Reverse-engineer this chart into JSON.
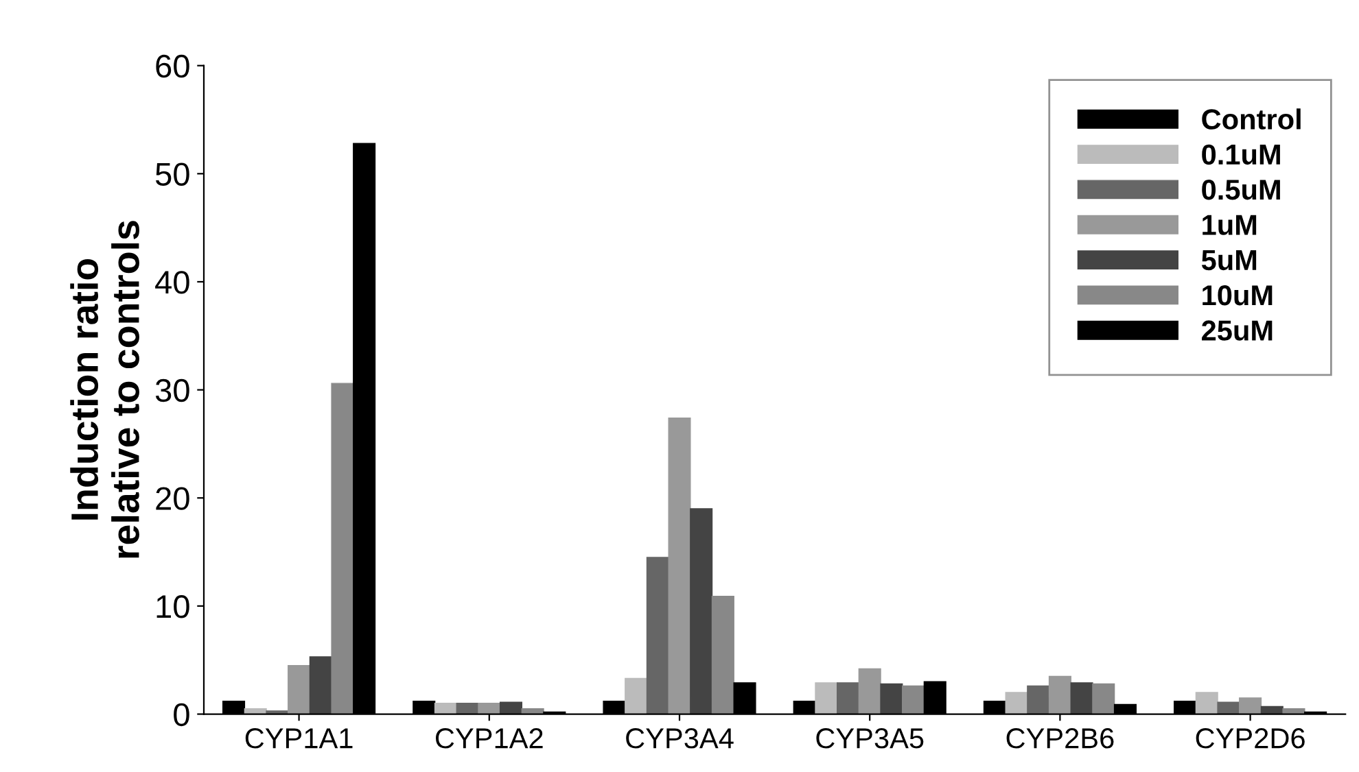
{
  "chart_data": {
    "type": "bar",
    "ylabel": "Induction ratio\nrelative to controls",
    "categories": [
      "CYP1A1",
      "CYP1A2",
      "CYP3A4",
      "CYP3A5",
      "CYP2B6",
      "CYP2D6"
    ],
    "series": [
      {
        "name": "Control",
        "color": "#000000",
        "values": [
          1.2,
          1.2,
          1.2,
          1.2,
          1.2,
          1.2
        ]
      },
      {
        "name": "0.1uM",
        "color": "#bbbbbb",
        "values": [
          0.5,
          1.0,
          3.3,
          2.9,
          2.0,
          2.0
        ]
      },
      {
        "name": "0.5uM",
        "color": "#666666",
        "values": [
          0.3,
          1.0,
          14.5,
          2.9,
          2.6,
          1.1
        ]
      },
      {
        "name": "1uM",
        "color": "#999999",
        "values": [
          4.5,
          1.0,
          27.4,
          4.2,
          3.5,
          1.5
        ]
      },
      {
        "name": "5uM",
        "color": "#444444",
        "values": [
          5.3,
          1.1,
          19.0,
          2.8,
          2.9,
          0.7
        ]
      },
      {
        "name": "10uM",
        "color": "#888888",
        "values": [
          30.6,
          0.5,
          10.9,
          2.6,
          2.8,
          0.5
        ]
      },
      {
        "name": "25uM",
        "color": "#000000",
        "values": [
          52.8,
          0.2,
          2.9,
          3.0,
          0.9,
          0.2
        ]
      }
    ],
    "ylim": [
      0,
      60
    ],
    "yticks": [
      0,
      10,
      20,
      30,
      40,
      50,
      60
    ],
    "grid": false,
    "legend": "top right"
  }
}
